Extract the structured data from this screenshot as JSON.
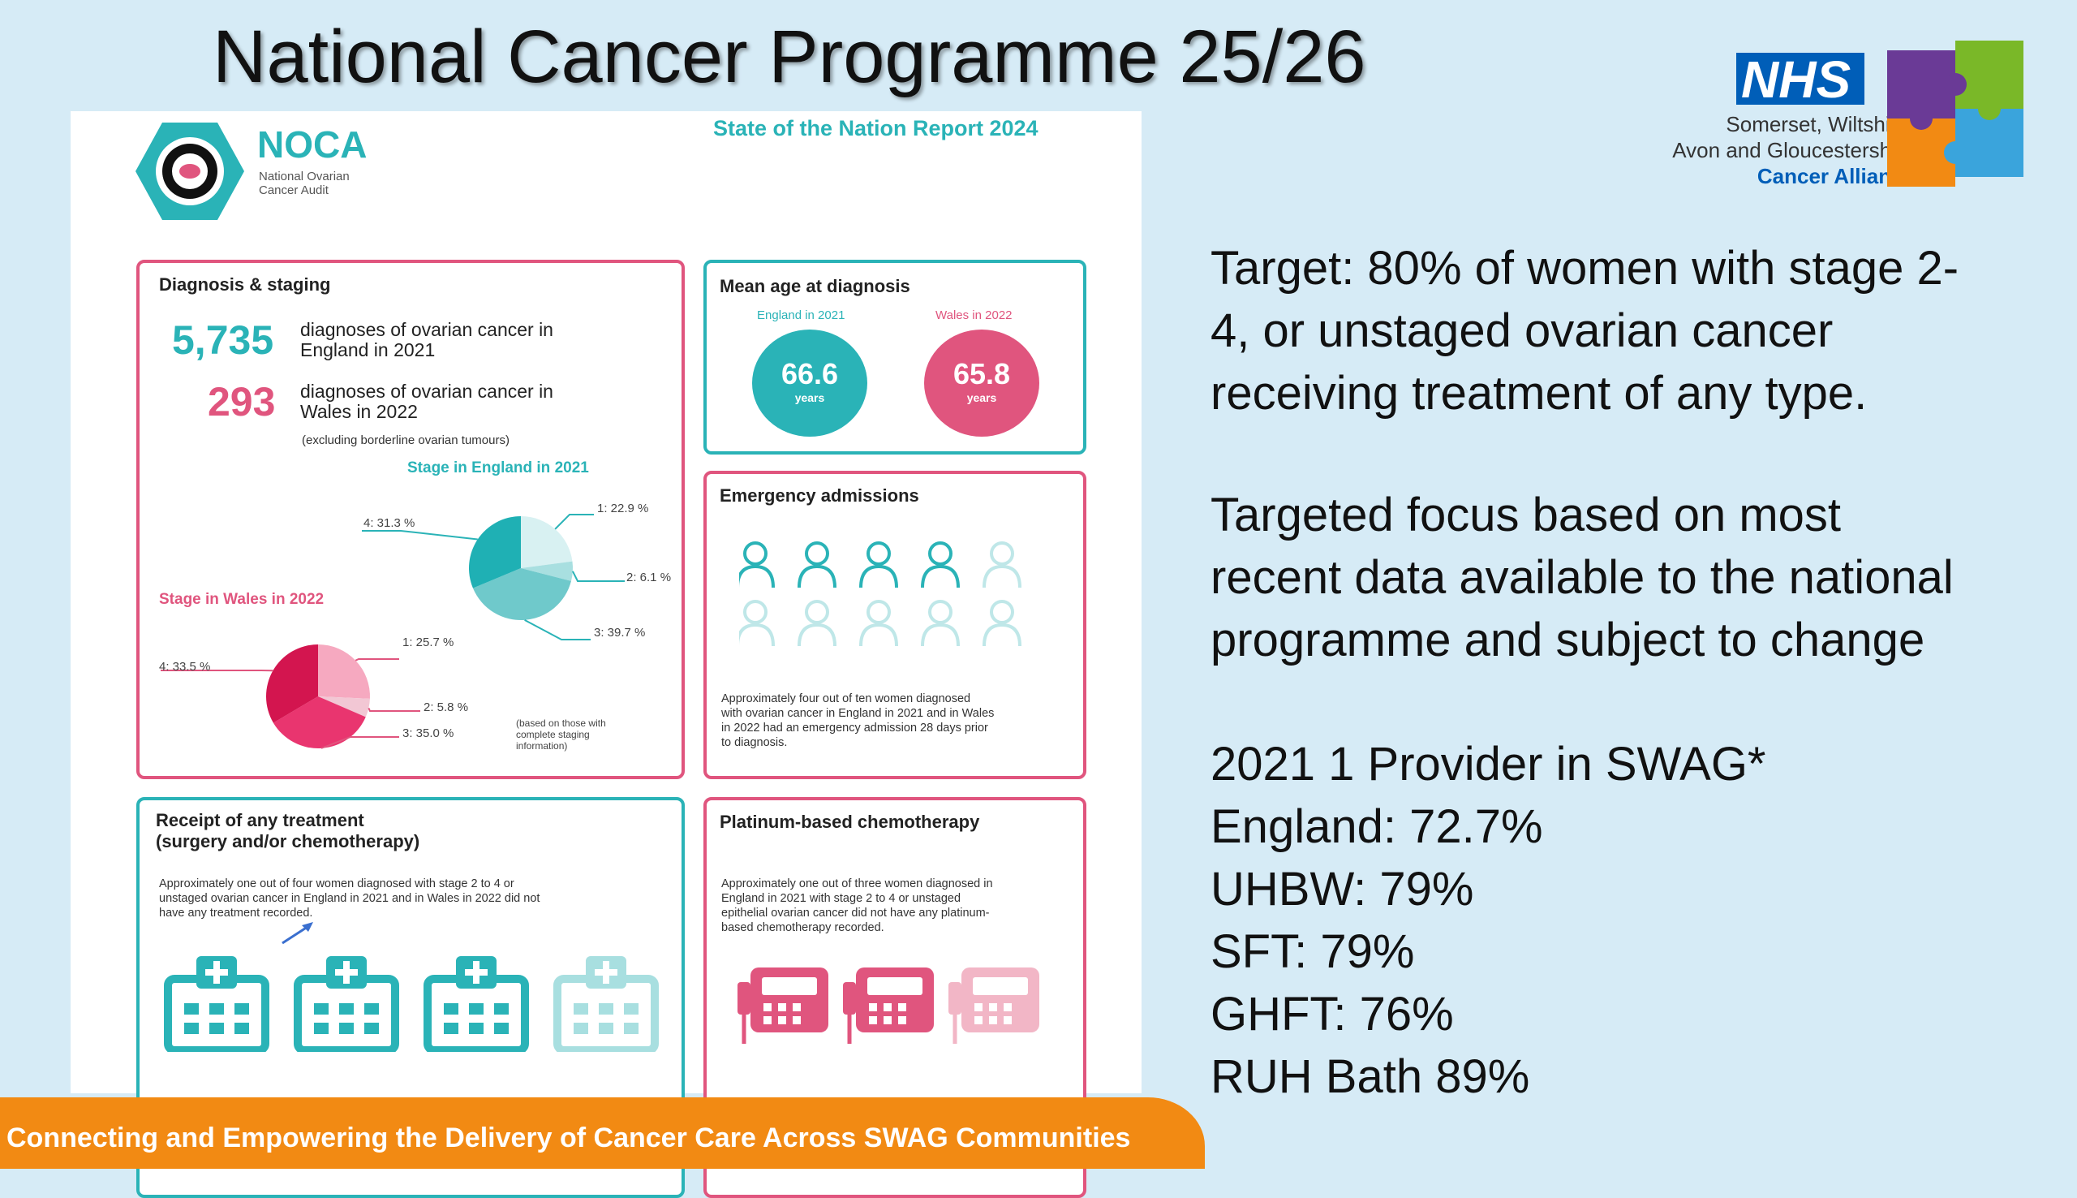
{
  "title": "National Cancer Programme 25/26",
  "logo": {
    "nhs": "NHS",
    "alliance_lines": [
      "Somerset, Wiltshire,",
      "Avon and Gloucestershire"
    ],
    "alliance_name": "Cancer Alliance"
  },
  "infographic": {
    "org_short": "NOCA",
    "org_long": [
      "National Ovarian",
      "Cancer Audit"
    ],
    "report_title": "State of the Nation Report 2024",
    "diagnosis": {
      "title": "Diagnosis & staging",
      "england_count": "5,735",
      "england_text": [
        "diagnoses of ovarian cancer in",
        "England in 2021"
      ],
      "wales_count": "293",
      "wales_text": [
        "diagnoses of ovarian cancer in",
        "Wales in 2022"
      ],
      "note": "(excluding borderline ovarian tumours)",
      "england_stage_title": "Stage in England in 2021",
      "wales_stage_title": "Stage in Wales in 2022",
      "england_stages": [
        {
          "label": "1: 22.9 %",
          "value": 22.9
        },
        {
          "label": "2: 6.1 %",
          "value": 6.1
        },
        {
          "label": "3: 39.7 %",
          "value": 39.7
        },
        {
          "label": "4: 31.3 %",
          "value": 31.3
        }
      ],
      "wales_stages": [
        {
          "label": "1: 25.7 %",
          "value": 25.7
        },
        {
          "label": "2: 5.8 %",
          "value": 5.8
        },
        {
          "label": "3: 35.0 %",
          "value": 35.0
        },
        {
          "label": "4: 33.5 %",
          "value": 33.5
        }
      ],
      "staging_note": [
        "(based on those with",
        "complete staging",
        "information)"
      ]
    },
    "mean_age": {
      "title": "Mean age at diagnosis",
      "england_label": "England in 2021",
      "england_value": "66.6",
      "wales_label": "Wales in 2022",
      "wales_value": "65.8",
      "unit": "years"
    },
    "emergency": {
      "title": "Emergency admissions",
      "highlighted_of_ten": 4,
      "text": [
        "Approximately four out of ten women diagnosed",
        "with ovarian cancer in England in 2021 and in Wales",
        "in 2022 had an emergency admission 28 days prior",
        "to diagnosis."
      ]
    },
    "treatment": {
      "title": [
        "Receipt of any treatment",
        "(surgery and/or chemotherapy)"
      ],
      "text": [
        "Approximately one out of four women diagnosed with stage 2 to 4 or",
        "unstaged ovarian cancer in England in 2021 and in Wales in 2022 did not",
        "have any treatment recorded."
      ]
    },
    "platinum": {
      "title": "Platinum-based chemotherapy",
      "text": [
        "Approximately one out of three women diagnosed in",
        "England in 2021 with stage 2 to 4 or unstaged",
        "epithelial ovarian cancer did not have any platinum-",
        "based chemotherapy recorded."
      ]
    }
  },
  "right_text": {
    "target": [
      "Target: 80% of women with stage 2-",
      "4, or unstaged ovarian cancer",
      "receiving treatment of any type."
    ],
    "focus": [
      "Targeted focus based on most",
      "recent data available to the national",
      "programme and subject to change"
    ],
    "providers": [
      "2021 1 Provider in SWAG*",
      "England: 72.7%",
      "UHBW: 79%",
      "SFT: 79%",
      "GHFT: 76%",
      "RUH Bath 89%"
    ]
  },
  "footer": "Connecting and Empowering the Delivery of Cancer Care Across SWAG Communities",
  "colors": {
    "teal": "#2ab3b7",
    "pink": "#e0557e",
    "orange": "#f28a13",
    "nhs_blue": "#005eb8",
    "background": "#d6ebf6"
  }
}
